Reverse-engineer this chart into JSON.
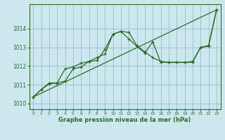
{
  "xlabel": "Graphe pression niveau de la mer (hPa)",
  "bg_color": "#cce8ee",
  "grid_color": "#99bbcc",
  "line_color": "#2d6a2d",
  "xlim": [
    -0.5,
    23.5
  ],
  "ylim": [
    1009.7,
    1015.3
  ],
  "xticks": [
    0,
    1,
    2,
    3,
    4,
    5,
    6,
    7,
    8,
    9,
    10,
    11,
    12,
    13,
    14,
    15,
    16,
    17,
    18,
    19,
    20,
    21,
    22,
    23
  ],
  "yticks": [
    1010,
    1011,
    1012,
    1013,
    1014
  ],
  "series1_x": [
    0,
    1,
    2,
    3,
    4,
    5,
    6,
    7,
    8,
    9,
    10,
    11,
    12,
    13,
    14,
    15,
    16,
    17,
    18,
    19,
    20,
    21,
    22,
    23
  ],
  "series1_y": [
    1010.35,
    1010.75,
    1011.05,
    1011.1,
    1011.85,
    1011.95,
    1012.15,
    1012.25,
    1012.45,
    1012.65,
    1013.7,
    1013.85,
    1013.8,
    1013.1,
    1012.75,
    1012.45,
    1012.25,
    1012.2,
    1012.2,
    1012.2,
    1012.25,
    1013.0,
    1013.05,
    1015.0
  ],
  "series2_x": [
    0,
    1,
    2,
    3,
    4,
    5,
    6,
    7,
    8,
    9,
    10,
    11,
    12,
    13,
    14,
    15,
    16,
    17,
    18,
    19,
    20,
    21,
    22,
    23
  ],
  "series2_y": [
    1010.35,
    1010.75,
    1011.1,
    1011.1,
    1011.2,
    1011.85,
    1011.95,
    1012.25,
    1012.3,
    1012.9,
    1013.7,
    1013.85,
    1013.45,
    1013.05,
    1012.7,
    1013.3,
    1012.2,
    1012.2,
    1012.2,
    1012.2,
    1012.2,
    1013.0,
    1013.1,
    1015.0
  ],
  "series3_x": [
    0,
    23
  ],
  "series3_y": [
    1010.35,
    1015.0
  ]
}
